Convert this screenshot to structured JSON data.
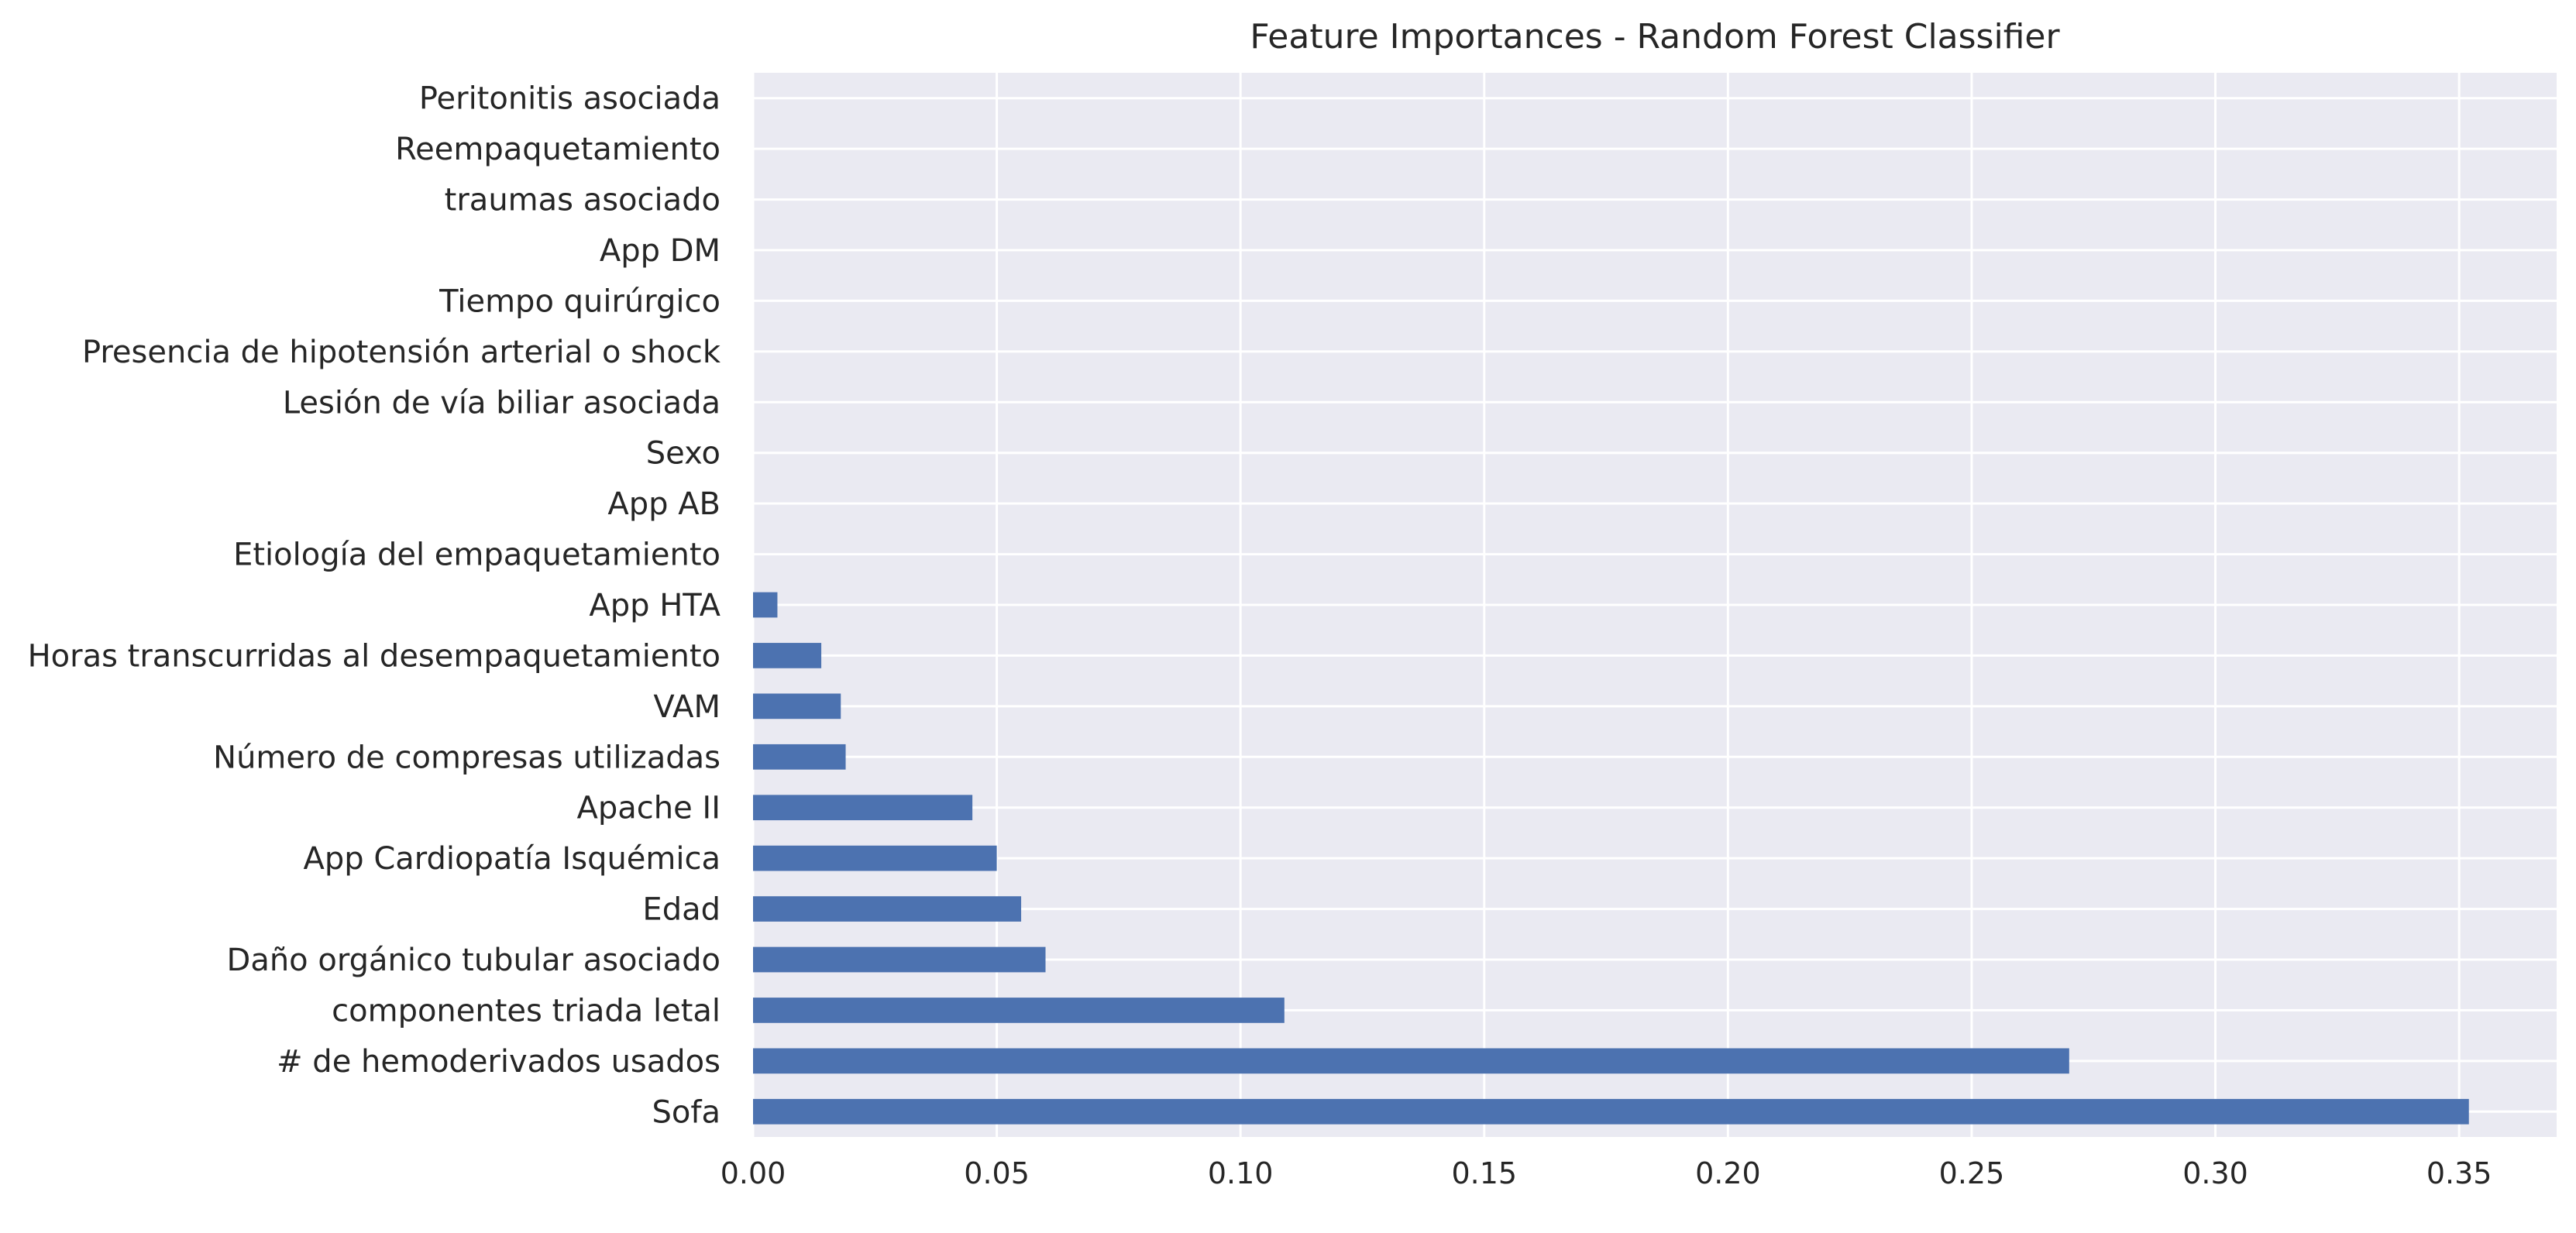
{
  "chart_data": {
    "type": "bar",
    "orientation": "horizontal",
    "title": "Feature Importances - Random Forest Classifier",
    "xlabel": "",
    "ylabel": "",
    "xlim": [
      0,
      0.37
    ],
    "x_ticks": [
      "0.00",
      "0.05",
      "0.10",
      "0.15",
      "0.20",
      "0.25",
      "0.30",
      "0.35"
    ],
    "x_tick_values": [
      0,
      0.05,
      0.1,
      0.15,
      0.2,
      0.25,
      0.3,
      0.35
    ],
    "grid": true,
    "bar_color": "#4C72B0",
    "background_color": "#EAEAF2",
    "categories": [
      "Sofa",
      "# de hemoderivados  usados",
      "componentes triada letal",
      "Daño orgánico tubular asociado",
      "Edad",
      "App Cardiopatía Isquémica",
      "Apache II",
      "Número de compresas utilizadas",
      "VAM",
      "Horas transcurridas al desempaquetamiento",
      "App HTA",
      "Etiología del empaquetamiento",
      "App AB",
      "Sexo",
      "Lesión de vía biliar asociada",
      "Presencia de hipotensión arterial o shock",
      "Tiempo quirúrgico",
      "App DM",
      "traumas asociado",
      "Reempaquetamiento",
      "Peritonitis asociada"
    ],
    "values": [
      0.352,
      0.27,
      0.109,
      0.06,
      0.055,
      0.05,
      0.045,
      0.019,
      0.018,
      0.014,
      0.005,
      0,
      0,
      0,
      0,
      0,
      0,
      0,
      0,
      0,
      0
    ]
  }
}
